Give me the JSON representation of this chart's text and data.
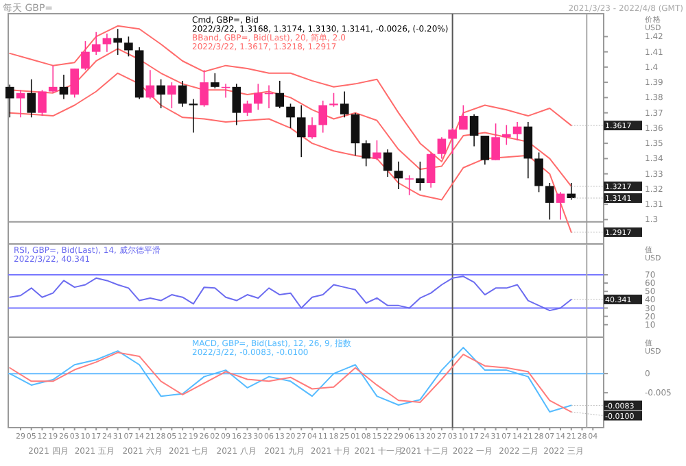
{
  "chart_data": [
    {
      "type": "candlestick",
      "title": "Cmd, GBP=, Bid",
      "subtitle": "2022/3/22, 1.3168, 1.3174, 1.3130, 1.3141, -0.0026, (-0.20%)",
      "ylabel": "价格\nUSD",
      "annotations": [
        "BBand, GBP=, Bid(Last), 20, 简单, 2.0",
        "2022/3/22, 1.3617, 1.3218, 1.2917",
        "每天 GBP=",
        "2021/3/23 - 2022/4/8 (GMT)",
        {
          "text": "1.3617",
          "x": "2022-03-21",
          "y": 1.3617
        },
        {
          "text": "1.3217",
          "x": "2022-03-21",
          "y": 1.3218
        },
        {
          "text": "1.3141",
          "x": "2022-03-21",
          "y": 1.3141
        },
        {
          "text": "1.2917",
          "x": "2022-03-21",
          "y": 1.2917
        }
      ],
      "x": [
        "2021-03-22",
        "2021-03-29",
        "2021-04-05",
        "2021-04-12",
        "2021-04-19",
        "2021-04-26",
        "2021-05-03",
        "2021-05-10",
        "2021-05-17",
        "2021-05-24",
        "2021-05-31",
        "2021-06-07",
        "2021-06-14",
        "2021-06-21",
        "2021-06-28",
        "2021-07-05",
        "2021-07-12",
        "2021-07-19",
        "2021-07-26",
        "2021-08-02",
        "2021-08-09",
        "2021-08-16",
        "2021-08-23",
        "2021-08-30",
        "2021-09-06",
        "2021-09-13",
        "2021-09-20",
        "2021-09-27",
        "2021-10-04",
        "2021-10-11",
        "2021-10-18",
        "2021-10-25",
        "2021-11-01",
        "2021-11-08",
        "2021-11-15",
        "2021-11-22",
        "2021-11-29",
        "2021-12-06",
        "2021-12-13",
        "2021-12-20",
        "2021-12-27",
        "2022-01-03",
        "2022-01-10",
        "2022-01-17",
        "2022-01-24",
        "2022-01-31",
        "2022-02-07",
        "2022-02-14",
        "2022-02-21",
        "2022-02-28",
        "2022-03-07",
        "2022-03-14",
        "2022-03-21"
      ],
      "ohlc": [
        [
          1.387,
          1.3885,
          1.367,
          1.3795
        ],
        [
          1.3795,
          1.385,
          1.367,
          1.383
        ],
        [
          1.383,
          1.392,
          1.367,
          1.37
        ],
        [
          1.37,
          1.385,
          1.368,
          1.384
        ],
        [
          1.384,
          1.401,
          1.383,
          1.387
        ],
        [
          1.387,
          1.395,
          1.379,
          1.382
        ],
        [
          1.382,
          1.399,
          1.38,
          1.399
        ],
        [
          1.399,
          1.417,
          1.398,
          1.41
        ],
        [
          1.41,
          1.423,
          1.408,
          1.415
        ],
        [
          1.415,
          1.422,
          1.41,
          1.419
        ],
        [
          1.419,
          1.425,
          1.408,
          1.416
        ],
        [
          1.416,
          1.42,
          1.407,
          1.411
        ],
        [
          1.411,
          1.413,
          1.379,
          1.38
        ],
        [
          1.38,
          1.398,
          1.379,
          1.388
        ],
        [
          1.388,
          1.392,
          1.373,
          1.382
        ],
        [
          1.382,
          1.39,
          1.373,
          1.388
        ],
        [
          1.388,
          1.391,
          1.374,
          1.376
        ],
        [
          1.376,
          1.379,
          1.357,
          1.375
        ],
        [
          1.375,
          1.398,
          1.374,
          1.39
        ],
        [
          1.39,
          1.396,
          1.386,
          1.387
        ],
        [
          1.387,
          1.389,
          1.38,
          1.387
        ],
        [
          1.387,
          1.389,
          1.362,
          1.37
        ],
        [
          1.37,
          1.378,
          1.368,
          1.376
        ],
        [
          1.376,
          1.389,
          1.372,
          1.383
        ],
        [
          1.383,
          1.388,
          1.373,
          1.383
        ],
        [
          1.383,
          1.391,
          1.373,
          1.374
        ],
        [
          1.374,
          1.376,
          1.36,
          1.367
        ],
        [
          1.367,
          1.375,
          1.341,
          1.354
        ],
        [
          1.354,
          1.367,
          1.353,
          1.362
        ],
        [
          1.362,
          1.378,
          1.357,
          1.375
        ],
        [
          1.375,
          1.383,
          1.374,
          1.376
        ],
        [
          1.376,
          1.384,
          1.367,
          1.369
        ],
        [
          1.369,
          1.37,
          1.342,
          1.35
        ],
        [
          1.35,
          1.352,
          1.335,
          1.34
        ],
        [
          1.34,
          1.352,
          1.339,
          1.344
        ],
        [
          1.344,
          1.346,
          1.328,
          1.332
        ],
        [
          1.332,
          1.338,
          1.32,
          1.327
        ],
        [
          1.327,
          1.329,
          1.316,
          1.327
        ],
        [
          1.327,
          1.338,
          1.319,
          1.324
        ],
        [
          1.324,
          1.344,
          1.321,
          1.343
        ],
        [
          1.343,
          1.354,
          1.34,
          1.353
        ],
        [
          1.353,
          1.36,
          1.343,
          1.359
        ],
        [
          1.359,
          1.375,
          1.359,
          1.368
        ],
        [
          1.368,
          1.369,
          1.348,
          1.355
        ],
        [
          1.355,
          1.355,
          1.336,
          1.339
        ],
        [
          1.339,
          1.363,
          1.339,
          1.354
        ],
        [
          1.354,
          1.362,
          1.349,
          1.356
        ],
        [
          1.356,
          1.364,
          1.352,
          1.361
        ],
        [
          1.361,
          1.364,
          1.327,
          1.34
        ],
        [
          1.34,
          1.344,
          1.318,
          1.322
        ],
        [
          1.322,
          1.324,
          1.3,
          1.311
        ],
        [
          1.311,
          1.318,
          1.3,
          1.317
        ],
        [
          1.317,
          1.324,
          1.313,
          1.3141
        ]
      ],
      "series": [
        {
          "type": "line",
          "color": "#ff6b6b",
          "x": [
            "2021-03-22",
            "2021-04-05",
            "2021-04-19",
            "2021-05-03",
            "2021-05-17",
            "2021-05-31",
            "2021-06-14",
            "2021-06-28",
            "2021-07-12",
            "2021-07-26",
            "2021-08-09",
            "2021-08-23",
            "2021-09-06",
            "2021-09-20",
            "2021-10-04",
            "2021-10-18",
            "2021-11-01",
            "2021-11-15",
            "2021-11-29",
            "2021-12-13",
            "2021-12-27",
            "2022-01-10",
            "2022-01-24",
            "2022-02-07",
            "2022-02-21",
            "2022-03-07",
            "2022-03-21"
          ],
          "values": [
            1.409,
            1.405,
            1.401,
            1.403,
            1.42,
            1.427,
            1.425,
            1.415,
            1.404,
            1.397,
            1.401,
            1.399,
            1.396,
            1.396,
            1.391,
            1.387,
            1.389,
            1.392,
            1.37,
            1.35,
            1.338,
            1.37,
            1.375,
            1.372,
            1.368,
            1.373,
            1.3617
          ]
        },
        {
          "type": "line",
          "color": "#ff6b6b",
          "x": [
            "2021-03-22",
            "2021-04-05",
            "2021-04-19",
            "2021-05-03",
            "2021-05-17",
            "2021-05-31",
            "2021-06-14",
            "2021-06-28",
            "2021-07-12",
            "2021-07-26",
            "2021-08-09",
            "2021-08-23",
            "2021-09-06",
            "2021-09-20",
            "2021-10-04",
            "2021-10-18",
            "2021-11-01",
            "2021-11-15",
            "2021-11-29",
            "2021-12-13",
            "2021-12-27",
            "2022-01-10",
            "2022-01-24",
            "2022-02-07",
            "2022-02-21",
            "2022-03-07",
            "2022-03-21"
          ],
          "values": [
            1.385,
            1.384,
            1.383,
            1.389,
            1.404,
            1.412,
            1.405,
            1.396,
            1.389,
            1.385,
            1.385,
            1.382,
            1.384,
            1.38,
            1.372,
            1.366,
            1.37,
            1.365,
            1.346,
            1.333,
            1.335,
            1.355,
            1.357,
            1.354,
            1.351,
            1.34,
            1.3218
          ]
        },
        {
          "type": "line",
          "color": "#ff6b6b",
          "x": [
            "2021-03-22",
            "2021-04-05",
            "2021-04-19",
            "2021-05-03",
            "2021-05-17",
            "2021-05-31",
            "2021-06-14",
            "2021-06-28",
            "2021-07-12",
            "2021-07-26",
            "2021-08-09",
            "2021-08-23",
            "2021-09-06",
            "2021-09-20",
            "2021-10-04",
            "2021-10-18",
            "2021-11-01",
            "2021-11-15",
            "2021-11-29",
            "2021-12-13",
            "2021-12-27",
            "2022-01-10",
            "2022-01-24",
            "2022-02-07",
            "2022-02-21",
            "2022-03-07",
            "2022-03-21"
          ],
          "values": [
            1.37,
            1.369,
            1.368,
            1.375,
            1.384,
            1.396,
            1.389,
            1.375,
            1.367,
            1.366,
            1.364,
            1.365,
            1.366,
            1.36,
            1.35,
            1.345,
            1.342,
            1.34,
            1.324,
            1.316,
            1.313,
            1.334,
            1.34,
            1.341,
            1.342,
            1.33,
            1.2917
          ]
        }
      ],
      "xlim": [
        "2021-03-21",
        "2022-04-11"
      ],
      "ylim": [
        1.284,
        1.435
      ],
      "yticks": [
        1.3,
        1.31,
        1.32,
        1.33,
        1.34,
        1.35,
        1.36,
        1.37,
        1.38,
        1.39,
        1.4,
        1.41,
        1.42
      ],
      "ref_lines": [
        {
          "axis": "x",
          "value": "2022-01-03",
          "color": "#555555"
        },
        {
          "axis": "x",
          "value": "2022-03-31",
          "color": "#aaaaaa"
        },
        {
          "axis": "y",
          "value": 1.2985,
          "color": "#999999"
        }
      ],
      "tick_labels": "y"
    },
    {
      "type": "line",
      "title": "RSI, GBP=, Bid(Last), 14, 威尔德平滑",
      "subtitle": "2022/3/22, 40.341",
      "ylabel": "值\nUSD",
      "annotations": [
        {
          "text": "40.341",
          "x": "2022-03-21",
          "y": 40.341
        }
      ],
      "x": [
        "2021-03-22",
        "2021-03-29",
        "2021-04-05",
        "2021-04-12",
        "2021-04-19",
        "2021-04-26",
        "2021-05-03",
        "2021-05-10",
        "2021-05-17",
        "2021-05-24",
        "2021-05-31",
        "2021-06-07",
        "2021-06-14",
        "2021-06-21",
        "2021-06-28",
        "2021-07-05",
        "2021-07-12",
        "2021-07-19",
        "2021-07-26",
        "2021-08-02",
        "2021-08-09",
        "2021-08-16",
        "2021-08-23",
        "2021-08-30",
        "2021-09-06",
        "2021-09-13",
        "2021-09-20",
        "2021-09-27",
        "2021-10-04",
        "2021-10-11",
        "2021-10-18",
        "2021-10-25",
        "2021-11-01",
        "2021-11-08",
        "2021-11-15",
        "2021-11-22",
        "2021-11-29",
        "2021-12-06",
        "2021-12-13",
        "2021-12-20",
        "2021-12-27",
        "2022-01-03",
        "2022-01-10",
        "2022-01-17",
        "2022-01-24",
        "2022-01-31",
        "2022-02-07",
        "2022-02-14",
        "2022-02-21",
        "2022-02-28",
        "2022-03-07",
        "2022-03-14",
        "2022-03-21"
      ],
      "series": [
        {
          "color": "#6b6bf0",
          "values": [
            43,
            45,
            54,
            43,
            48,
            63,
            55,
            58,
            66,
            63,
            58,
            54,
            39,
            42,
            39,
            46,
            43,
            35,
            55,
            54,
            43,
            39,
            46,
            42,
            54,
            46,
            48,
            30,
            43,
            46,
            58,
            55,
            52,
            36,
            42,
            33,
            33,
            30,
            42,
            48,
            58,
            66,
            68,
            61,
            46,
            54,
            54,
            58,
            39,
            33,
            27,
            30,
            40.341
          ]
        }
      ],
      "xlim": [
        "2021-03-21",
        "2022-04-11"
      ],
      "ylim": [
        -5,
        107
      ],
      "yticks": [
        10,
        20,
        30,
        40,
        50,
        60,
        70
      ],
      "ref_lines": [
        {
          "axis": "y",
          "value": 70,
          "color": "#7777ff"
        },
        {
          "axis": "y",
          "value": 30,
          "color": "#7777ff"
        },
        {
          "axis": "x",
          "value": "2022-01-03",
          "color": "#555555"
        },
        {
          "axis": "x",
          "value": "2022-03-31",
          "color": "#aaaaaa"
        }
      ],
      "tick_labels": "y"
    },
    {
      "type": "line",
      "title": "MACD, GBP=, Bid(Last), 12, 26, 9, 指数",
      "subtitle": "2022/3/22, -0.0083, -0.0100",
      "ylabel": "值\nUSD",
      "annotations": [
        {
          "text": "-0.0083",
          "x": "2022-03-21",
          "y": -0.0083
        },
        {
          "text": "-0.0100",
          "x": "2022-03-21",
          "y": -0.01
        }
      ],
      "x": [
        "2021-03-22",
        "2021-04-05",
        "2021-04-19",
        "2021-05-03",
        "2021-05-17",
        "2021-05-31",
        "2021-06-14",
        "2021-06-28",
        "2021-07-12",
        "2021-07-26",
        "2021-08-09",
        "2021-08-23",
        "2021-09-06",
        "2021-09-20",
        "2021-10-04",
        "2021-10-18",
        "2021-11-01",
        "2021-11-15",
        "2021-11-29",
        "2021-12-13",
        "2021-12-27",
        "2022-01-10",
        "2022-01-24",
        "2022-02-07",
        "2022-02-21",
        "2022-03-07",
        "2022-03-21"
      ],
      "series": [
        {
          "color": "#55bbff",
          "values": [
            0,
            -0.003,
            -0.0016,
            0.0023,
            0.0036,
            0.0059,
            0.0023,
            -0.0059,
            -0.0053,
            -0.0008,
            0.0009,
            -0.0037,
            -0.0008,
            -0.002,
            -0.0059,
            0,
            0.0023,
            -0.0059,
            -0.0082,
            -0.0068,
            0.0009,
            0.0068,
            0.0009,
            0.0009,
            -0.0008,
            -0.01,
            -0.0083
          ]
        },
        {
          "color": "#ff7b7b",
          "values": [
            0.0015,
            -0.002,
            -0.002,
            0.001,
            0.003,
            0.0055,
            0.0045,
            -0.002,
            -0.0055,
            -0.0025,
            0.0005,
            -0.0015,
            -0.002,
            -0.001,
            -0.004,
            -0.0035,
            0.0015,
            -0.003,
            -0.007,
            -0.0075,
            -0.0015,
            0.005,
            0.002,
            0.0015,
            0.0005,
            -0.007,
            -0.01
          ]
        }
      ],
      "xlim": [
        "2021-03-21",
        "2022-04-11"
      ],
      "ylim": [
        -0.0141,
        0.0095
      ],
      "yticks": [
        -0.005,
        0
      ],
      "ref_lines": [
        {
          "axis": "y",
          "value": 0,
          "color": "#66bbff"
        },
        {
          "axis": "x",
          "value": "2022-01-03",
          "color": "#555555"
        },
        {
          "axis": "x",
          "value": "2022-03-31",
          "color": "#aaaaaa"
        }
      ],
      "xticks": [
        {
          "value": "2021-03-29",
          "label": "29"
        },
        {
          "value": "2021-04-05",
          "label": "05"
        },
        {
          "value": "2021-04-12",
          "label": "12"
        },
        {
          "value": "2021-04-19",
          "label": "19"
        },
        {
          "value": "2021-04-26",
          "label": "26"
        },
        {
          "value": "2021-05-03",
          "label": "03"
        },
        {
          "value": "2021-05-10",
          "label": "10"
        },
        {
          "value": "2021-05-17",
          "label": "17"
        },
        {
          "value": "2021-05-24",
          "label": "24"
        },
        {
          "value": "2021-05-31",
          "label": "31"
        },
        {
          "value": "2021-06-07",
          "label": "07"
        },
        {
          "value": "2021-06-14",
          "label": "14"
        },
        {
          "value": "2021-06-21",
          "label": "21"
        },
        {
          "value": "2021-06-28",
          "label": "28"
        },
        {
          "value": "2021-07-05",
          "label": "05"
        },
        {
          "value": "2021-07-12",
          "label": "12"
        },
        {
          "value": "2021-07-19",
          "label": "19"
        },
        {
          "value": "2021-07-26",
          "label": "26"
        },
        {
          "value": "2021-08-02",
          "label": "02"
        },
        {
          "value": "2021-08-09",
          "label": "09"
        },
        {
          "value": "2021-08-16",
          "label": "16"
        },
        {
          "value": "2021-08-23",
          "label": "23"
        },
        {
          "value": "2021-08-30",
          "label": "30"
        },
        {
          "value": "2021-09-06",
          "label": "06"
        },
        {
          "value": "2021-09-13",
          "label": "13"
        },
        {
          "value": "2021-09-20",
          "label": "20"
        },
        {
          "value": "2021-09-27",
          "label": "27"
        },
        {
          "value": "2021-10-04",
          "label": "04"
        },
        {
          "value": "2021-10-11",
          "label": "11"
        },
        {
          "value": "2021-10-18",
          "label": "18"
        },
        {
          "value": "2021-10-25",
          "label": "25"
        },
        {
          "value": "2021-11-01",
          "label": "01"
        },
        {
          "value": "2021-11-08",
          "label": "08"
        },
        {
          "value": "2021-11-15",
          "label": "15"
        },
        {
          "value": "2021-11-22",
          "label": "22"
        },
        {
          "value": "2021-11-29",
          "label": "29"
        },
        {
          "value": "2021-12-06",
          "label": "06"
        },
        {
          "value": "2021-12-13",
          "label": "13"
        },
        {
          "value": "2021-12-20",
          "label": "20"
        },
        {
          "value": "2021-12-27",
          "label": "27"
        },
        {
          "value": "2022-01-03",
          "label": "03"
        },
        {
          "value": "2022-01-10",
          "label": "10"
        },
        {
          "value": "2022-01-17",
          "label": "17"
        },
        {
          "value": "2022-01-24",
          "label": "24"
        },
        {
          "value": "2022-01-31",
          "label": "31"
        },
        {
          "value": "2022-02-07",
          "label": "07"
        },
        {
          "value": "2022-02-14",
          "label": "14"
        },
        {
          "value": "2022-02-21",
          "label": "21"
        },
        {
          "value": "2022-02-28",
          "label": "28"
        },
        {
          "value": "2022-03-07",
          "label": "07"
        },
        {
          "value": "2022-03-14",
          "label": "14"
        },
        {
          "value": "2022-03-21",
          "label": "21"
        },
        {
          "value": "2022-03-28",
          "label": "28"
        },
        {
          "value": "2022-04-04",
          "label": "04"
        }
      ],
      "x2lim": [
        "2021-03-21",
        "2022-04-11"
      ],
      "x2ticks": [
        {
          "value": "2021-04-16",
          "label": "2021 四月"
        },
        {
          "value": "2021-05-16",
          "label": "2021 五月"
        },
        {
          "value": "2021-06-16",
          "label": "2021 六月"
        },
        {
          "value": "2021-07-16",
          "label": "2021 七月"
        },
        {
          "value": "2021-08-16",
          "label": "2021 八月"
        },
        {
          "value": "2021-09-16",
          "label": "2021 九月"
        },
        {
          "value": "2021-10-16",
          "label": "2021 十月"
        },
        {
          "value": "2021-11-16",
          "label": "2021 十一月"
        },
        {
          "value": "2021-12-16",
          "label": "2021 十二月"
        },
        {
          "value": "2022-01-16",
          "label": "2022 一月"
        },
        {
          "value": "2022-02-15",
          "label": "2022 二月"
        },
        {
          "value": "2022-03-16",
          "label": "2022 三月"
        }
      ]
    }
  ]
}
